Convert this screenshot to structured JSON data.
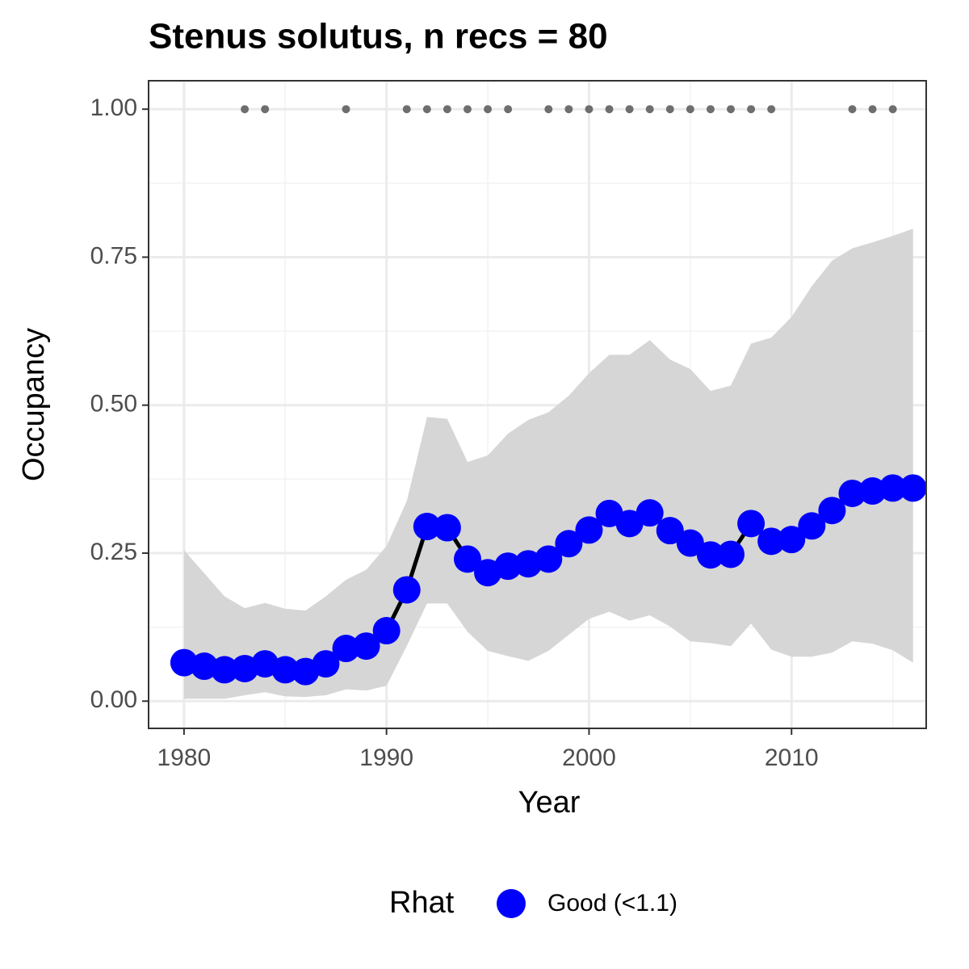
{
  "chart_data": {
    "type": "line",
    "title": "Stenus solutus, n recs = 80",
    "x_label": "Year",
    "y_label": "Occupancy",
    "legend_title": "Rhat",
    "legend_position": "bottom",
    "x": [
      1980,
      1981,
      1982,
      1983,
      1984,
      1985,
      1986,
      1987,
      1988,
      1989,
      1990,
      1991,
      1992,
      1993,
      1994,
      1995,
      1996,
      1997,
      1998,
      1999,
      2000,
      2001,
      2002,
      2003,
      2004,
      2005,
      2006,
      2007,
      2008,
      2009,
      2010,
      2011,
      2012,
      2013,
      2014,
      2015,
      2016
    ],
    "series": [
      {
        "name": "Good (<1.1)",
        "color": "#0000ff",
        "line_color": "#000000",
        "band_color": "#d6d6d6",
        "values": [
          0.065,
          0.059,
          0.053,
          0.055,
          0.063,
          0.053,
          0.05,
          0.063,
          0.089,
          0.093,
          0.119,
          0.188,
          0.295,
          0.293,
          0.24,
          0.217,
          0.228,
          0.232,
          0.24,
          0.266,
          0.289,
          0.317,
          0.3,
          0.318,
          0.288,
          0.267,
          0.247,
          0.248,
          0.3,
          0.27,
          0.273,
          0.296,
          0.322,
          0.351,
          0.355,
          0.36,
          0.36
        ],
        "upper": [
          0.255,
          0.216,
          0.177,
          0.157,
          0.166,
          0.156,
          0.153,
          0.177,
          0.205,
          0.222,
          0.262,
          0.338,
          0.48,
          0.477,
          0.404,
          0.415,
          0.452,
          0.475,
          0.488,
          0.516,
          0.554,
          0.585,
          0.585,
          0.61,
          0.577,
          0.561,
          0.524,
          0.533,
          0.604,
          0.614,
          0.649,
          0.701,
          0.744,
          0.765,
          0.775,
          0.786,
          0.798
        ],
        "lower": [
          0.004,
          0.004,
          0.004,
          0.01,
          0.015,
          0.008,
          0.007,
          0.01,
          0.02,
          0.018,
          0.026,
          0.093,
          0.165,
          0.165,
          0.117,
          0.085,
          0.076,
          0.068,
          0.085,
          0.112,
          0.139,
          0.151,
          0.136,
          0.145,
          0.126,
          0.101,
          0.098,
          0.093,
          0.131,
          0.087,
          0.075,
          0.075,
          0.082,
          0.101,
          0.097,
          0.086,
          0.065
        ]
      }
    ],
    "records": {
      "color": "#6e6e6e",
      "x": [
        1983,
        1984,
        1988,
        1991,
        1992,
        1993,
        1994,
        1995,
        1996,
        1998,
        1999,
        2000,
        2001,
        2002,
        2003,
        2004,
        2005,
        2006,
        2007,
        2008,
        2009,
        2013,
        2014,
        2015
      ],
      "values": [
        1,
        1,
        1,
        1,
        1,
        1,
        1,
        1,
        1,
        1,
        1,
        1,
        1,
        1,
        1,
        1,
        1,
        1,
        1,
        1,
        1,
        1,
        1,
        1
      ]
    },
    "xlim": [
      1978.25,
      2016.65
    ],
    "ylim": [
      -0.046,
      1.048
    ],
    "xticks": [
      1980,
      1990,
      2000,
      2010
    ],
    "yticks": [
      {
        "value": 0,
        "label": "0.00"
      },
      {
        "value": 0.25,
        "label": "0.25"
      },
      {
        "value": 0.5,
        "label": "0.50"
      },
      {
        "value": 0.75,
        "label": "0.75"
      },
      {
        "value": 1,
        "label": "1.00"
      }
    ],
    "minor_xticks": [
      1985,
      1995,
      2005,
      2015
    ],
    "minor_yticks": [
      0.125,
      0.375,
      0.625,
      0.875
    ],
    "grid": true
  }
}
